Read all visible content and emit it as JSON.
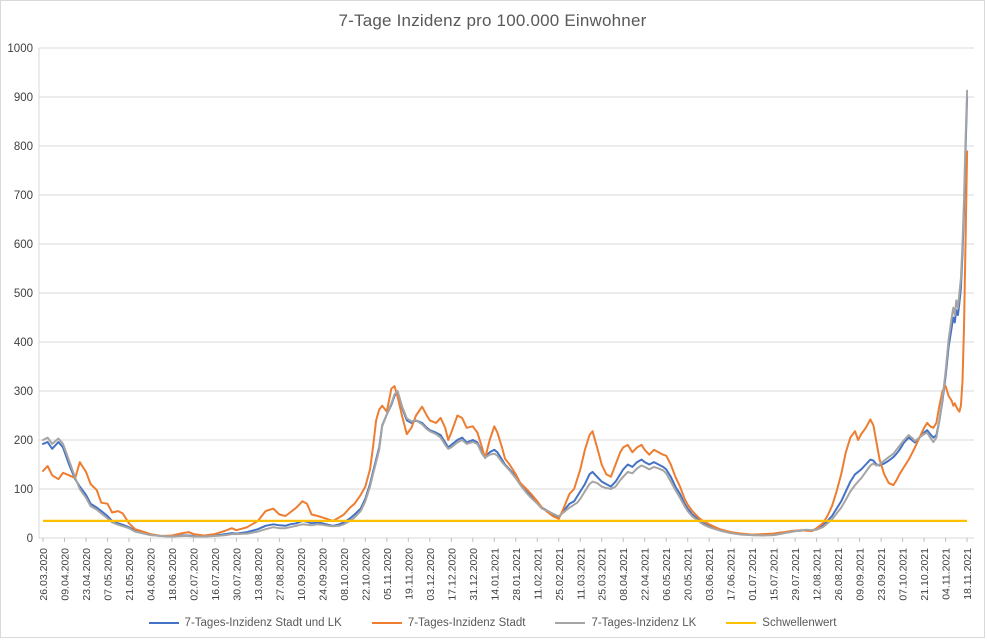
{
  "title": "7-Tage Inzidenz pro 100.000 Einwohner",
  "colors": {
    "series_stadt_und_lk": "#4472C4",
    "series_stadt": "#ED7D31",
    "series_lk": "#A5A5A5",
    "threshold": "#FFC000",
    "gridline": "#D9D9D9",
    "tick_mark": "#BFBFBF",
    "axis_text": "#404040",
    "title_text": "#595959",
    "legend_text": "#595959",
    "background": "#FFFFFF"
  },
  "legend": {
    "items": [
      {
        "label": "7-Tages-Inzidenz Stadt und LK",
        "color": "#4472C4"
      },
      {
        "label": "7-Tages-Inzidenz Stadt",
        "color": "#ED7D31"
      },
      {
        "label": "7-Tages-Inzidenz LK",
        "color": "#A5A5A5"
      },
      {
        "label": "Schwellenwert",
        "color": "#FFC000"
      }
    ]
  },
  "chart_data": {
    "type": "line",
    "title": "7-Tage Inzidenz pro 100.000 Einwohner",
    "xlabel": "",
    "ylabel": "",
    "ylim": [
      0,
      1000
    ],
    "ytick_step": 100,
    "yticks": [
      0,
      100,
      200,
      300,
      400,
      500,
      600,
      700,
      800,
      900,
      1000
    ],
    "grid": "horizontal",
    "legend_position": "bottom",
    "x_unit": "days since 26.03.2020 (daily data, ticks every 14 days)",
    "x_tick_labels": [
      "26.03.2020",
      "09.04.2020",
      "23.04.2020",
      "07.05.2020",
      "21.05.2020",
      "04.06.2020",
      "18.06.2020",
      "02.07.2020",
      "16.07.2020",
      "30.07.2020",
      "13.08.2020",
      "27.08.2020",
      "10.09.2020",
      "24.09.2020",
      "08.10.2020",
      "22.10.2020",
      "05.11.2020",
      "19.11.2020",
      "03.12.2020",
      "17.12.2020",
      "31.12.2020",
      "14.01.2021",
      "28.01.2021",
      "11.02.2021",
      "25.02.2021",
      "11.03.2021",
      "25.03.2021",
      "08.04.2021",
      "22.04.2021",
      "06.05.2021",
      "20.05.2021",
      "03.06.2021",
      "17.06.2021",
      "01.07.2021",
      "15.07.2021",
      "29.07.2021",
      "12.08.2021",
      "26.08.2021",
      "09.09.2021",
      "23.09.2021",
      "07.10.2021",
      "21.10.2021",
      "04.11.2021",
      "18.11.2021"
    ],
    "x_tick_days": [
      0,
      14,
      28,
      42,
      56,
      70,
      84,
      98,
      112,
      126,
      140,
      154,
      168,
      182,
      196,
      210,
      224,
      238,
      252,
      266,
      280,
      294,
      308,
      322,
      336,
      350,
      364,
      378,
      392,
      406,
      420,
      434,
      448,
      462,
      476,
      490,
      504,
      518,
      532,
      546,
      560,
      574,
      588,
      602
    ],
    "x_days": [
      0,
      3,
      6,
      10,
      13,
      17,
      21,
      24,
      28,
      31,
      35,
      38,
      42,
      45,
      49,
      52,
      56,
      60,
      63,
      70,
      77,
      84,
      91,
      95,
      98,
      105,
      112,
      119,
      123,
      126,
      133,
      140,
      145,
      150,
      154,
      158,
      161,
      165,
      169,
      172,
      175,
      179,
      182,
      186,
      189,
      193,
      196,
      200,
      203,
      207,
      210,
      213,
      215,
      217,
      219,
      221,
      224,
      227,
      229,
      231,
      234,
      237,
      240,
      243,
      247,
      250,
      252,
      256,
      259,
      262,
      264,
      266,
      270,
      273,
      276,
      280,
      283,
      286,
      288,
      291,
      294,
      296,
      299,
      301,
      304,
      308,
      311,
      315,
      318,
      322,
      325,
      329,
      332,
      336,
      339,
      343,
      346,
      348,
      350,
      353,
      356,
      358,
      361,
      364,
      367,
      370,
      373,
      376,
      378,
      381,
      384,
      387,
      390,
      392,
      395,
      398,
      401,
      404,
      406,
      409,
      412,
      415,
      418,
      420,
      423,
      427,
      430,
      434,
      438,
      441,
      448,
      455,
      462,
      469,
      476,
      480,
      483,
      487,
      490,
      494,
      497,
      501,
      504,
      508,
      511,
      514,
      517,
      520,
      523,
      526,
      529,
      531,
      533,
      536,
      539,
      541,
      543,
      545,
      548,
      551,
      554,
      556,
      558,
      561,
      564,
      566,
      568,
      571,
      574,
      576,
      578,
      580,
      582,
      584,
      586,
      588,
      590,
      592,
      593,
      594,
      595,
      596,
      597,
      598,
      599,
      600,
      601,
      602
    ],
    "series": [
      {
        "name": "7-Tages-Inzidenz Stadt und LK",
        "color": "#4472C4",
        "values": [
          192,
          196,
          182,
          196,
          185,
          150,
          120,
          105,
          88,
          70,
          62,
          55,
          45,
          35,
          30,
          27,
          22,
          15,
          12,
          7,
          4,
          3,
          5,
          5,
          4,
          3,
          5,
          8,
          10,
          9,
          12,
          18,
          25,
          28,
          26,
          25,
          28,
          30,
          35,
          33,
          30,
          32,
          30,
          27,
          25,
          28,
          32,
          40,
          48,
          60,
          80,
          110,
          135,
          160,
          185,
          230,
          252,
          272,
          290,
          298,
          265,
          240,
          235,
          240,
          235,
          225,
          220,
          215,
          210,
          195,
          185,
          190,
          200,
          205,
          195,
          200,
          195,
          175,
          165,
          175,
          180,
          175,
          160,
          150,
          140,
          125,
          110,
          95,
          85,
          72,
          62,
          55,
          48,
          42,
          55,
          70,
          75,
          85,
          95,
          110,
          130,
          135,
          125,
          115,
          110,
          105,
          115,
          130,
          140,
          150,
          145,
          155,
          160,
          155,
          150,
          155,
          150,
          145,
          140,
          125,
          105,
          90,
          70,
          60,
          48,
          38,
          30,
          24,
          20,
          16,
          11,
          8,
          6,
          6,
          7,
          9,
          11,
          13,
          14,
          15,
          16,
          15,
          18,
          25,
          35,
          45,
          60,
          75,
          95,
          115,
          130,
          135,
          140,
          150,
          160,
          158,
          150,
          148,
          152,
          158,
          165,
          172,
          180,
          195,
          205,
          200,
          195,
          205,
          215,
          220,
          212,
          205,
          210,
          240,
          280,
          330,
          390,
          430,
          450,
          440,
          465,
          455,
          480,
          510,
          580,
          670,
          790,
          900
        ]
      },
      {
        "name": "7-Tages-Inzidenz Stadt",
        "color": "#ED7D31",
        "values": [
          137,
          147,
          128,
          120,
          133,
          128,
          122,
          155,
          135,
          110,
          98,
          72,
          70,
          52,
          55,
          50,
          30,
          18,
          15,
          8,
          4,
          5,
          10,
          12,
          8,
          5,
          8,
          15,
          20,
          16,
          22,
          35,
          55,
          60,
          48,
          45,
          52,
          62,
          75,
          70,
          48,
          45,
          42,
          38,
          35,
          42,
          48,
          62,
          70,
          88,
          105,
          140,
          185,
          240,
          262,
          270,
          258,
          305,
          310,
          288,
          248,
          212,
          225,
          250,
          268,
          250,
          240,
          235,
          245,
          225,
          200,
          215,
          250,
          245,
          225,
          228,
          215,
          185,
          163,
          200,
          228,
          215,
          185,
          162,
          150,
          130,
          112,
          100,
          90,
          75,
          62,
          52,
          45,
          39,
          60,
          90,
          100,
          120,
          140,
          180,
          210,
          218,
          185,
          150,
          130,
          125,
          150,
          175,
          185,
          190,
          175,
          185,
          190,
          180,
          170,
          180,
          175,
          170,
          168,
          150,
          125,
          105,
          80,
          68,
          55,
          42,
          35,
          28,
          22,
          18,
          12,
          9,
          7,
          8,
          9,
          11,
          12,
          14,
          15,
          16,
          15,
          14,
          20,
          30,
          45,
          65,
          95,
          130,
          175,
          205,
          218,
          200,
          212,
          225,
          242,
          230,
          195,
          160,
          130,
          112,
          108,
          118,
          130,
          145,
          160,
          172,
          185,
          205,
          225,
          235,
          228,
          225,
          235,
          270,
          300,
          310,
          290,
          280,
          270,
          275,
          268,
          262,
          258,
          270,
          320,
          430,
          600,
          789
        ]
      },
      {
        "name": "7-Tages-Inzidenz LK",
        "color": "#A5A5A5",
        "values": [
          200,
          205,
          192,
          203,
          192,
          158,
          123,
          100,
          82,
          65,
          58,
          50,
          40,
          32,
          27,
          24,
          20,
          13,
          11,
          6,
          4,
          3,
          4,
          4,
          3,
          3,
          4,
          6,
          8,
          8,
          9,
          13,
          18,
          22,
          20,
          20,
          22,
          25,
          28,
          27,
          26,
          28,
          27,
          25,
          24,
          25,
          28,
          35,
          42,
          55,
          75,
          105,
          130,
          155,
          180,
          228,
          252,
          275,
          293,
          300,
          268,
          244,
          238,
          240,
          232,
          222,
          218,
          212,
          205,
          190,
          182,
          185,
          195,
          200,
          192,
          196,
          192,
          172,
          164,
          170,
          172,
          168,
          155,
          148,
          138,
          122,
          108,
          92,
          82,
          70,
          60,
          55,
          50,
          44,
          52,
          62,
          68,
          72,
          80,
          95,
          110,
          115,
          112,
          105,
          102,
          100,
          105,
          118,
          125,
          135,
          132,
          142,
          148,
          145,
          140,
          145,
          142,
          138,
          132,
          115,
          98,
          82,
          65,
          55,
          44,
          35,
          28,
          22,
          18,
          15,
          10,
          7,
          6,
          5,
          6,
          8,
          10,
          12,
          14,
          15,
          17,
          16,
          17,
          22,
          30,
          38,
          50,
          62,
          78,
          95,
          108,
          115,
          122,
          135,
          148,
          152,
          148,
          150,
          158,
          165,
          172,
          180,
          188,
          200,
          210,
          205,
          198,
          205,
          212,
          215,
          205,
          196,
          205,
          240,
          285,
          340,
          405,
          450,
          470,
          455,
          485,
          470,
          500,
          530,
          600,
          690,
          810,
          913
        ]
      }
    ],
    "threshold": {
      "name": "Schwellenwert",
      "value": 35,
      "color": "#FFC000"
    }
  }
}
